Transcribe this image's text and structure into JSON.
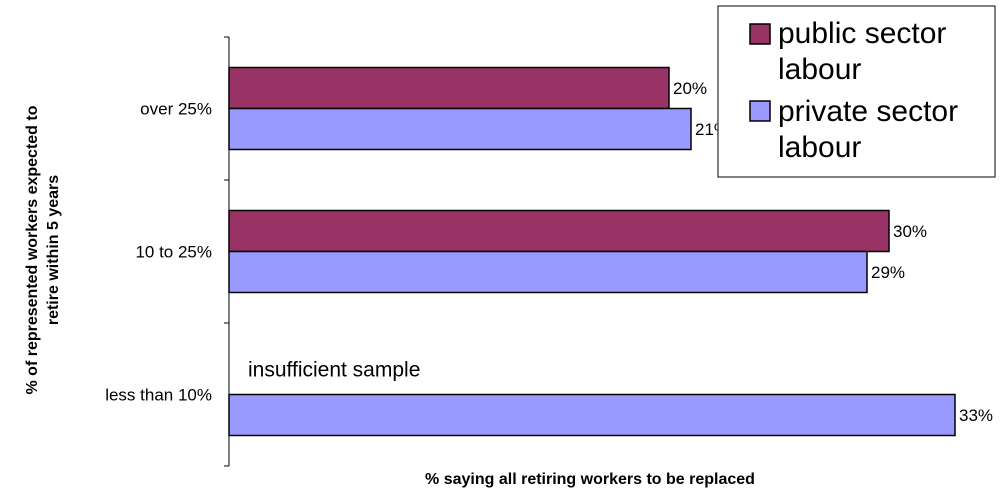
{
  "chart_data": {
    "type": "bar",
    "orientation": "horizontal",
    "categories": [
      "over 25%",
      "10 to 25%",
      "less than 10%"
    ],
    "series": [
      {
        "name": "public sector labour",
        "values": [
          20,
          30,
          null
        ],
        "labels": [
          "20%",
          "30%",
          ""
        ],
        "color": "#993366"
      },
      {
        "name": "private sector labour",
        "values": [
          21,
          29,
          33
        ],
        "labels": [
          "21%",
          "29%",
          "33%"
        ],
        "color": "#9999ff"
      }
    ],
    "xlabel": "% saying all retiring workers to be replaced",
    "ylabel_line1": "% of represented workers expected to",
    "ylabel_line2": "retire within 5 years",
    "xlim": [
      0,
      33
    ],
    "legend": {
      "position": "top-right"
    },
    "annotations": [
      {
        "text": "insufficient sample"
      }
    ]
  }
}
